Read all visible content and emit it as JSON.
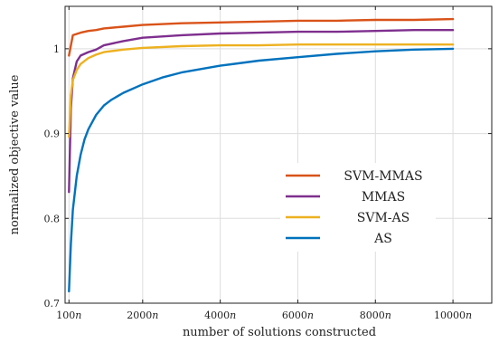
{
  "chart_data": {
    "type": "line",
    "title": "",
    "xlabel": "number of solutions constructed",
    "ylabel": "normalized objective value",
    "xlim": [
      0,
      11000
    ],
    "ylim": [
      0.7,
      1.05
    ],
    "x_ticks": [
      100,
      2000,
      4000,
      6000,
      8000,
      10000
    ],
    "x_tick_labels": [
      "100n",
      "2000n",
      "4000n",
      "6000n",
      "8000n",
      "10000n"
    ],
    "y_ticks": [
      0.7,
      0.8,
      0.9,
      1.0
    ],
    "y_tick_labels": [
      "0.7",
      "0.8",
      "0.9",
      "1"
    ],
    "grid": true,
    "legend_position": "center-right",
    "series": [
      {
        "name": "SVM-MMAS",
        "color": "#d95319",
        "x": [
          100,
          200,
          400,
          600,
          800,
          1000,
          1500,
          2000,
          3000,
          4000,
          5000,
          6000,
          7000,
          8000,
          9000,
          10000
        ],
        "values": [
          0.992,
          1.016,
          1.019,
          1.021,
          1.022,
          1.024,
          1.026,
          1.028,
          1.03,
          1.031,
          1.032,
          1.033,
          1.033,
          1.034,
          1.034,
          1.035
        ]
      },
      {
        "name": "MMAS",
        "color": "#7e2f8e",
        "x": [
          100,
          150,
          200,
          300,
          400,
          600,
          800,
          1000,
          1500,
          2000,
          3000,
          4000,
          5000,
          6000,
          7000,
          8000,
          9000,
          10000
        ],
        "values": [
          0.831,
          0.93,
          0.965,
          0.985,
          0.992,
          0.996,
          0.999,
          1.004,
          1.009,
          1.013,
          1.016,
          1.018,
          1.019,
          1.02,
          1.02,
          1.021,
          1.022,
          1.022
        ]
      },
      {
        "name": "SVM-AS",
        "color": "#edb120",
        "x": [
          100,
          150,
          200,
          300,
          400,
          600,
          800,
          1000,
          1500,
          2000,
          3000,
          4000,
          5000,
          6000,
          7000,
          8000,
          9000,
          10000
        ],
        "values": [
          0.896,
          0.945,
          0.963,
          0.975,
          0.982,
          0.989,
          0.993,
          0.996,
          0.999,
          1.001,
          1.003,
          1.004,
          1.004,
          1.005,
          1.005,
          1.005,
          1.005,
          1.005
        ]
      },
      {
        "name": "AS",
        "color": "#0072bd",
        "x": [
          100,
          150,
          200,
          300,
          400,
          500,
          600,
          800,
          1000,
          1200,
          1500,
          2000,
          2500,
          3000,
          4000,
          5000,
          6000,
          7000,
          8000,
          9000,
          10000
        ],
        "values": [
          0.714,
          0.77,
          0.81,
          0.85,
          0.875,
          0.893,
          0.905,
          0.922,
          0.933,
          0.94,
          0.948,
          0.958,
          0.966,
          0.972,
          0.98,
          0.986,
          0.99,
          0.994,
          0.997,
          0.999,
          1.0
        ]
      }
    ]
  }
}
